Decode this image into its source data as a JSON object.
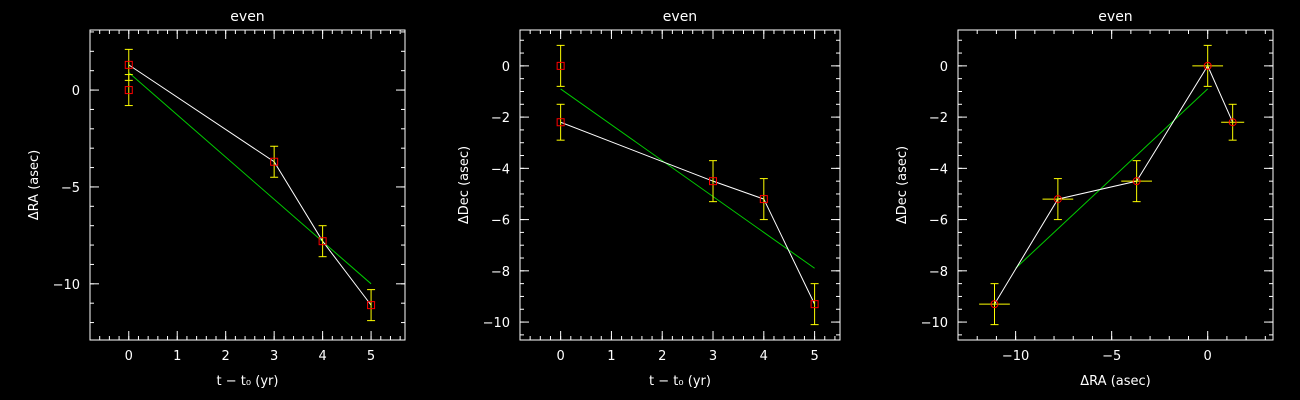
{
  "colors": {
    "background": "#000000",
    "axes": "#ffffff",
    "connect_line": "#ffffff",
    "fit_line": "#00cc00",
    "error_bars": "#ffff00",
    "markers": "#ff0000"
  },
  "chart_data": [
    {
      "type": "line",
      "title": "even",
      "xlabel": "t − t₀ (yr)",
      "ylabel": "ΔRA (asec)",
      "xlim": [
        -0.8,
        5.7
      ],
      "ylim": [
        -12.9,
        3.1
      ],
      "xticks": [
        0,
        1,
        2,
        3,
        4,
        5
      ],
      "yticks": [
        0,
        -5,
        -10
      ],
      "x_minor_step": 0.2,
      "y_minor_step": 1,
      "grid": false,
      "points": [
        {
          "x": 0,
          "y": 1.3,
          "yerr": 0.8,
          "marker": "square",
          "xerr": 0
        },
        {
          "x": 0,
          "y": 0.0,
          "yerr": 0.8,
          "marker": "square",
          "xerr": 0
        },
        {
          "x": 3,
          "y": -3.7,
          "yerr": 0.8,
          "marker": "square",
          "xerr": 0
        },
        {
          "x": 4,
          "y": -7.8,
          "yerr": 0.8,
          "marker": "square",
          "xerr": 0
        },
        {
          "x": 5,
          "y": -11.1,
          "yerr": 0.8,
          "marker": "square",
          "xerr": 0
        }
      ],
      "connect": [
        [
          0,
          1.3
        ],
        [
          3,
          -3.7
        ],
        [
          4,
          -7.8
        ],
        [
          5,
          -11.1
        ]
      ],
      "fit": [
        [
          0,
          0.9
        ],
        [
          5,
          -10.0
        ]
      ]
    },
    {
      "type": "line",
      "title": "even",
      "xlabel": "t − t₀ (yr)",
      "ylabel": "ΔDec (asec)",
      "xlim": [
        -0.8,
        5.5
      ],
      "ylim": [
        -10.7,
        1.4
      ],
      "xticks": [
        0,
        1,
        2,
        3,
        4,
        5
      ],
      "yticks": [
        0,
        -2,
        -4,
        -6,
        -8,
        -10
      ],
      "x_minor_step": 0.2,
      "y_minor_step": 0.5,
      "grid": false,
      "points": [
        {
          "x": 0,
          "y": 0.0,
          "yerr": 0.8,
          "marker": "square",
          "xerr": 0
        },
        {
          "x": 0,
          "y": -2.2,
          "yerr": 0.7,
          "marker": "square",
          "xerr": 0
        },
        {
          "x": 3,
          "y": -4.5,
          "yerr": 0.8,
          "marker": "square",
          "xerr": 0
        },
        {
          "x": 4,
          "y": -5.2,
          "yerr": 0.8,
          "marker": "square",
          "xerr": 0
        },
        {
          "x": 5,
          "y": -9.3,
          "yerr": 0.8,
          "marker": "square",
          "xerr": 0
        }
      ],
      "connect": [
        [
          0,
          -2.2
        ],
        [
          3,
          -4.5
        ],
        [
          4,
          -5.2
        ],
        [
          5,
          -9.3
        ]
      ],
      "fit": [
        [
          0,
          -0.9
        ],
        [
          5,
          -7.9
        ]
      ]
    },
    {
      "type": "scatter",
      "title": "even",
      "xlabel": "ΔRA (asec)",
      "ylabel": "ΔDec (asec)",
      "xlim": [
        -13.0,
        3.4
      ],
      "ylim": [
        -10.7,
        1.4
      ],
      "xticks": [
        -10,
        -5,
        0
      ],
      "yticks": [
        0,
        -2,
        -4,
        -6,
        -8,
        -10
      ],
      "x_minor_step": 1,
      "y_minor_step": 0.5,
      "grid": false,
      "points": [
        {
          "x": -11.1,
          "y": -9.3,
          "xerr": 0.8,
          "yerr": 0.8,
          "marker": "circle"
        },
        {
          "x": -7.8,
          "y": -5.2,
          "xerr": 0.8,
          "yerr": 0.8,
          "marker": "circle"
        },
        {
          "x": -3.7,
          "y": -4.5,
          "xerr": 0.8,
          "yerr": 0.8,
          "marker": "circle"
        },
        {
          "x": 0.0,
          "y": 0.0,
          "xerr": 0.8,
          "yerr": 0.8,
          "marker": "circle"
        },
        {
          "x": 1.3,
          "y": -2.2,
          "xerr": 0.6,
          "yerr": 0.7,
          "marker": "circle"
        }
      ],
      "connect": [
        [
          -11.1,
          -9.3
        ],
        [
          -7.8,
          -5.2
        ],
        [
          -3.7,
          -4.5
        ],
        [
          0.0,
          0.0
        ],
        [
          1.3,
          -2.2
        ]
      ],
      "fit": [
        [
          -10.0,
          -7.9
        ],
        [
          0.0,
          -0.9
        ]
      ]
    }
  ]
}
